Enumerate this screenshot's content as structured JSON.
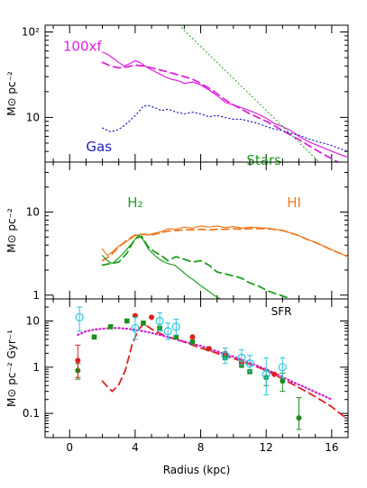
{
  "chart_data": [
    {
      "type": "line",
      "panel": "top",
      "ylabel": "M⊙ pc⁻²",
      "yscale": "log",
      "ylim": [
        3,
        120
      ],
      "xlim": [
        -1.5,
        17
      ],
      "yticks": [
        {
          "value": 10,
          "label": "10"
        },
        {
          "value": 100,
          "label": "10²"
        }
      ],
      "annotations": [
        {
          "text": "100xf",
          "color": "#e020e0",
          "x": 1.95,
          "y": 60,
          "anchor": "end",
          "size": "large"
        },
        {
          "text": "Gas",
          "color": "#2020c0",
          "x": 1.0,
          "y": 4.0,
          "anchor": "start",
          "size": "large"
        },
        {
          "text": "Stars",
          "color": "#20a020",
          "x": 10.8,
          "y": 2.8,
          "anchor": "start",
          "size": "large"
        }
      ],
      "series": [
        {
          "color": "#e020e0",
          "style": "solid",
          "width": 1.2,
          "x": [
            2.0,
            2.3,
            2.6,
            3.0,
            3.3,
            3.6,
            4.0,
            4.3,
            4.6,
            5.0,
            5.4,
            5.8,
            6.2,
            6.6,
            7.0,
            7.5,
            8.0,
            8.5,
            9.0,
            9.5,
            10.0,
            10.5,
            11.0,
            11.5,
            12.0,
            12.5,
            13.0,
            13.5,
            14.0,
            14.5,
            15.0,
            15.5,
            16.0,
            16.5,
            17.0
          ],
          "y": [
            58,
            55,
            50,
            44,
            40,
            42,
            46,
            44,
            40,
            36,
            33,
            30,
            28,
            27,
            25,
            26,
            24,
            21,
            18,
            15,
            14,
            13,
            12,
            11,
            9.8,
            8.5,
            7.8,
            7.0,
            6.0,
            5.3,
            4.8,
            4.4,
            4.0,
            3.7,
            3.4
          ]
        },
        {
          "color": "#e020e0",
          "style": "dashed",
          "width": 1.8,
          "x": [
            2.0,
            2.5,
            3.0,
            3.5,
            4.0,
            4.5,
            5.0,
            5.5,
            6.0,
            6.5,
            7.0,
            7.5,
            8.0,
            8.5,
            9.0,
            9.5,
            10.0,
            10.5,
            11.0,
            11.5,
            12.0,
            12.5,
            13.0,
            13.5,
            14.0,
            14.5,
            15.0,
            15.5,
            16.0,
            16.5,
            17.0
          ],
          "y": [
            44,
            40,
            38,
            39,
            41,
            40,
            38,
            36,
            34,
            32,
            30,
            28,
            25,
            22,
            19,
            16,
            14,
            12.5,
            11,
            10,
            9.0,
            8.0,
            7.0,
            6.2,
            5.5,
            4.8,
            4.2,
            3.7,
            3.3,
            2.9,
            2.6
          ]
        },
        {
          "color": "#2020c0",
          "style": "dotted",
          "width": 1.2,
          "x": [
            2.0,
            2.5,
            3.0,
            3.5,
            4.0,
            4.5,
            4.8,
            5.2,
            5.6,
            6.0,
            6.5,
            7.0,
            7.5,
            8.0,
            8.5,
            9.0,
            9.5,
            10.0,
            10.5,
            11.0,
            11.5,
            12.0,
            12.5,
            13.0,
            13.5,
            14.0,
            14.5,
            15.0,
            15.5,
            16.0,
            16.5,
            17.0
          ],
          "y": [
            7.5,
            6.8,
            7.2,
            8.5,
            10.5,
            13.5,
            13.8,
            13.0,
            12.0,
            12.5,
            11.5,
            11.0,
            11.5,
            11.0,
            10.2,
            10.5,
            10.0,
            9.5,
            9.5,
            9.0,
            8.5,
            7.8,
            7.3,
            7.0,
            6.5,
            6.2,
            5.7,
            5.3,
            5.0,
            4.7,
            4.3,
            4.0
          ]
        },
        {
          "color": "#20a020",
          "style": "dotted",
          "width": 1.0,
          "x": [
            6.0,
            17.0
          ],
          "y": [
            160,
            1.4
          ]
        }
      ]
    },
    {
      "type": "line",
      "panel": "middle",
      "ylabel": "M⊙ pc⁻²",
      "yscale": "log",
      "ylim": [
        0.9,
        40
      ],
      "xlim": [
        -1.5,
        17
      ],
      "yticks": [
        {
          "value": 1,
          "label": "1"
        },
        {
          "value": 10,
          "label": "10"
        }
      ],
      "annotations": [
        {
          "text": "H₂",
          "color": "#20a020",
          "x": 4.0,
          "y": 11.5,
          "anchor": "middle",
          "size": "large"
        },
        {
          "text": "HI",
          "color": "#f07a20",
          "x": 13.7,
          "y": 11.5,
          "anchor": "middle",
          "size": "large"
        }
      ],
      "series": [
        {
          "color": "#f07a20",
          "style": "solid",
          "width": 1.2,
          "x": [
            2.0,
            2.3,
            2.6,
            3.0,
            3.3,
            3.6,
            4.0,
            4.4,
            4.8,
            5.2,
            5.6,
            6.0,
            6.5,
            7.0,
            7.5,
            8.0,
            8.5,
            9.0,
            9.5,
            10.0,
            10.5,
            11.0,
            11.5,
            12.0,
            12.5,
            13.0,
            13.5,
            14.0,
            14.5,
            15.0,
            15.5,
            16.0,
            16.5,
            17.0
          ],
          "y": [
            3.6,
            3.0,
            3.3,
            3.9,
            4.2,
            4.6,
            5.2,
            5.4,
            5.3,
            5.6,
            5.8,
            6.3,
            6.2,
            6.6,
            6.4,
            6.8,
            6.6,
            6.8,
            6.5,
            6.7,
            6.4,
            6.6,
            6.5,
            6.4,
            6.2,
            6.0,
            5.6,
            5.2,
            4.7,
            4.3,
            3.9,
            3.5,
            3.2,
            2.9
          ]
        },
        {
          "color": "#f07a20",
          "style": "dashed",
          "width": 1.8,
          "x": [
            2.0,
            2.5,
            3.0,
            3.5,
            4.0,
            4.5,
            5.0,
            5.5,
            6.0,
            6.5,
            7.0,
            7.5,
            8.0,
            8.5,
            9.0,
            9.5,
            10.0,
            10.5,
            11.0,
            11.5,
            12.0,
            12.5,
            13.0,
            13.5,
            14.0,
            14.5,
            15.0,
            15.5,
            16.0,
            16.5,
            17.0
          ],
          "y": [
            2.6,
            3.0,
            3.8,
            4.6,
            5.3,
            5.4,
            5.3,
            5.6,
            5.9,
            6.0,
            6.1,
            6.1,
            6.2,
            6.1,
            6.2,
            6.2,
            6.3,
            6.2,
            6.3,
            6.3,
            6.3,
            6.2,
            6.0,
            5.6,
            5.2,
            4.7,
            4.3,
            3.9,
            3.5,
            3.2,
            2.9
          ]
        },
        {
          "color": "#20a020",
          "style": "solid",
          "width": 1.2,
          "x": [
            2.0,
            2.3,
            2.6,
            3.0,
            3.4,
            3.8,
            4.2,
            4.5,
            4.8,
            5.2,
            5.6,
            6.0,
            6.4,
            6.8,
            7.2,
            7.6,
            8.0,
            8.4,
            8.8,
            9.2
          ],
          "y": [
            3.0,
            2.6,
            2.4,
            2.8,
            3.4,
            4.2,
            5.3,
            4.6,
            3.6,
            3.0,
            2.6,
            2.4,
            2.3,
            2.0,
            1.7,
            1.5,
            1.3,
            1.15,
            1.0,
            0.9
          ]
        },
        {
          "color": "#20a020",
          "style": "dashed",
          "width": 1.8,
          "x": [
            2.0,
            2.5,
            3.0,
            3.5,
            4.0,
            4.4,
            4.8,
            5.2,
            5.6,
            6.0,
            6.5,
            7.0,
            7.5,
            8.0,
            8.5,
            9.0,
            9.5,
            10.0,
            10.5,
            11.0,
            11.5,
            12.0,
            12.5,
            13.0,
            13.5
          ],
          "y": [
            2.3,
            2.4,
            2.5,
            3.2,
            4.8,
            5.1,
            3.8,
            3.3,
            3.0,
            2.6,
            2.9,
            2.7,
            2.5,
            2.6,
            2.3,
            1.9,
            1.8,
            1.7,
            1.6,
            1.4,
            1.3,
            1.15,
            1.05,
            0.98,
            0.9
          ]
        }
      ]
    },
    {
      "type": "scatter",
      "panel": "bottom",
      "xlabel": "Radius (kpc)",
      "ylabel": "M⊙ pc⁻² Gyr⁻¹",
      "yscale": "log",
      "ylim": [
        0.03,
        30
      ],
      "xlim": [
        -1.5,
        17
      ],
      "xticks": [
        0,
        4,
        8,
        12,
        16
      ],
      "yticks": [
        {
          "value": 0.1,
          "label": "0.1"
        },
        {
          "value": 1,
          "label": "1"
        },
        {
          "value": 10,
          "label": "10"
        }
      ],
      "annotations": [
        {
          "text": "SFR",
          "color": "#000000",
          "x": 12.3,
          "y": 13.5,
          "anchor": "start",
          "size": "small"
        }
      ],
      "lines": [
        {
          "color": "#e02020",
          "style": "dashed",
          "width": 1.8,
          "x": [
            2.0,
            2.3,
            2.6,
            3.0,
            3.4,
            3.8,
            4.2,
            4.5,
            4.8,
            5.2,
            5.6,
            6.0,
            6.5,
            7.0,
            7.5,
            8.0,
            8.5,
            9.0,
            9.5,
            10.0,
            10.5,
            11.0,
            11.5,
            12.0,
            12.5,
            13.0,
            13.5,
            14.0,
            14.5,
            15.0,
            15.5,
            16.0,
            16.5,
            17.0
          ],
          "y": [
            0.5,
            0.38,
            0.3,
            0.42,
            0.85,
            3.0,
            6.5,
            8.5,
            7.5,
            6.0,
            5.2,
            4.5,
            4.0,
            3.5,
            3.0,
            2.6,
            2.3,
            2.0,
            1.75,
            1.55,
            1.35,
            1.15,
            1.0,
            0.85,
            0.7,
            0.55,
            0.45,
            0.36,
            0.29,
            0.23,
            0.18,
            0.14,
            0.1,
            0.075
          ]
        },
        {
          "color": "#d020d0",
          "style": "dotted",
          "width": 2.2,
          "x": [
            0.5,
            1.0,
            1.5,
            2.0,
            2.5,
            3.0,
            3.5,
            4.0,
            4.5,
            5.0,
            5.5,
            6.0,
            6.5,
            7.0,
            7.5,
            8.0,
            8.5,
            9.0,
            9.5,
            10.0,
            10.5,
            11.0,
            11.5,
            12.0,
            12.5,
            13.0,
            13.5,
            14.0,
            14.5,
            15.0,
            15.5,
            16.0
          ],
          "y": [
            5.0,
            6.0,
            6.5,
            6.8,
            7.0,
            7.0,
            6.8,
            6.5,
            6.0,
            5.5,
            5.0,
            4.5,
            4.0,
            3.6,
            3.2,
            2.9,
            2.5,
            2.2,
            1.9,
            1.7,
            1.45,
            1.25,
            1.05,
            0.9,
            0.75,
            0.62,
            0.5,
            0.42,
            0.35,
            0.29,
            0.24,
            0.2
          ]
        }
      ],
      "points": [
        {
          "color": "#1a8f1a",
          "marker": "filled-circle",
          "x": 0.5,
          "y": 0.85,
          "lo": 0.55,
          "hi": 1.2
        },
        {
          "color": "#1a8f1a",
          "marker": "filled-square",
          "x": 1.5,
          "y": 4.5
        },
        {
          "color": "#1a8f1a",
          "marker": "filled-square",
          "x": 2.5,
          "y": 7.5
        },
        {
          "color": "#1a8f1a",
          "marker": "filled-square",
          "x": 3.5,
          "y": 10.0
        },
        {
          "color": "#1a8f1a",
          "marker": "filled-square",
          "x": 4.5,
          "y": 9.0
        },
        {
          "color": "#1a8f1a",
          "marker": "filled-square",
          "x": 5.5,
          "y": 7.0
        },
        {
          "color": "#1a8f1a",
          "marker": "filled-square",
          "x": 6.5,
          "y": 4.5
        },
        {
          "color": "#1a8f1a",
          "marker": "filled-square",
          "x": 7.5,
          "y": 3.5
        },
        {
          "color": "#1a8f1a",
          "marker": "filled-square",
          "x": 8.5,
          "y": 2.5
        },
        {
          "color": "#1a8f1a",
          "marker": "filled-square",
          "x": 9.5,
          "y": 1.6
        },
        {
          "color": "#1a8f1a",
          "marker": "filled-square",
          "x": 10.5,
          "y": 1.1
        },
        {
          "color": "#1a8f1a",
          "marker": "filled-square",
          "x": 11.0,
          "y": 0.8
        },
        {
          "color": "#1a8f1a",
          "marker": "filled-circle",
          "x": 12.0,
          "y": 0.6,
          "lo": 0.4,
          "hi": 0.85
        },
        {
          "color": "#1a8f1a",
          "marker": "filled-circle",
          "x": 13.0,
          "y": 0.5,
          "lo": 0.3,
          "hi": 0.75
        },
        {
          "color": "#1a8f1a",
          "marker": "filled-circle",
          "x": 14.0,
          "y": 0.08,
          "lo": 0.045,
          "hi": 0.22
        },
        {
          "color": "#e02020",
          "marker": "filled-circle",
          "x": 0.5,
          "y": 1.4,
          "lo": 0.6,
          "hi": 3.0
        },
        {
          "color": "#e02020",
          "marker": "filled-circle",
          "x": 4.0,
          "y": 13.0
        },
        {
          "color": "#e02020",
          "marker": "filled-circle",
          "x": 5.0,
          "y": 12.0
        },
        {
          "color": "#e02020",
          "marker": "filled-circle",
          "x": 7.5,
          "y": 4.5
        },
        {
          "color": "#e02020",
          "marker": "filled-circle",
          "x": 8.5,
          "y": 2.5
        },
        {
          "color": "#e02020",
          "marker": "filled-circle",
          "x": 9.5,
          "y": 2.0
        },
        {
          "color": "#e02020",
          "marker": "filled-circle",
          "x": 10.5,
          "y": 1.3
        },
        {
          "color": "#e02020",
          "marker": "filled-circle",
          "x": 12.5,
          "y": 0.7
        },
        {
          "color": "#29c6e0",
          "marker": "open-circle",
          "x": 0.6,
          "y": 12.0,
          "lo": 6.0,
          "hi": 20.0
        },
        {
          "color": "#29c6e0",
          "marker": "open-circle",
          "x": 4.0,
          "y": 7.0,
          "lo": 4.0,
          "hi": 12.0
        },
        {
          "color": "#29c6e0",
          "marker": "open-circle",
          "x": 5.5,
          "y": 10.0,
          "lo": 6.0,
          "hi": 15.0
        },
        {
          "color": "#29c6e0",
          "marker": "open-circle",
          "x": 6.0,
          "y": 6.0,
          "lo": 4.0,
          "hi": 9.0
        },
        {
          "color": "#29c6e0",
          "marker": "open-circle",
          "x": 6.5,
          "y": 7.5,
          "lo": 5.0,
          "hi": 11.0
        },
        {
          "color": "#29c6e0",
          "marker": "open-circle",
          "x": 9.5,
          "y": 1.8,
          "lo": 1.2,
          "hi": 2.6
        },
        {
          "color": "#29c6e0",
          "marker": "open-circle",
          "x": 10.5,
          "y": 1.6,
          "lo": 1.1,
          "hi": 2.4
        },
        {
          "color": "#29c6e0",
          "marker": "open-circle",
          "x": 11.0,
          "y": 1.2,
          "lo": 0.8,
          "hi": 1.8
        },
        {
          "color": "#29c6e0",
          "marker": "open-circle",
          "x": 12.0,
          "y": 0.7,
          "lo": 0.25,
          "hi": 1.6
        },
        {
          "color": "#29c6e0",
          "marker": "open-circle",
          "x": 13.0,
          "y": 1.0,
          "lo": 0.6,
          "hi": 1.6
        }
      ]
    }
  ]
}
